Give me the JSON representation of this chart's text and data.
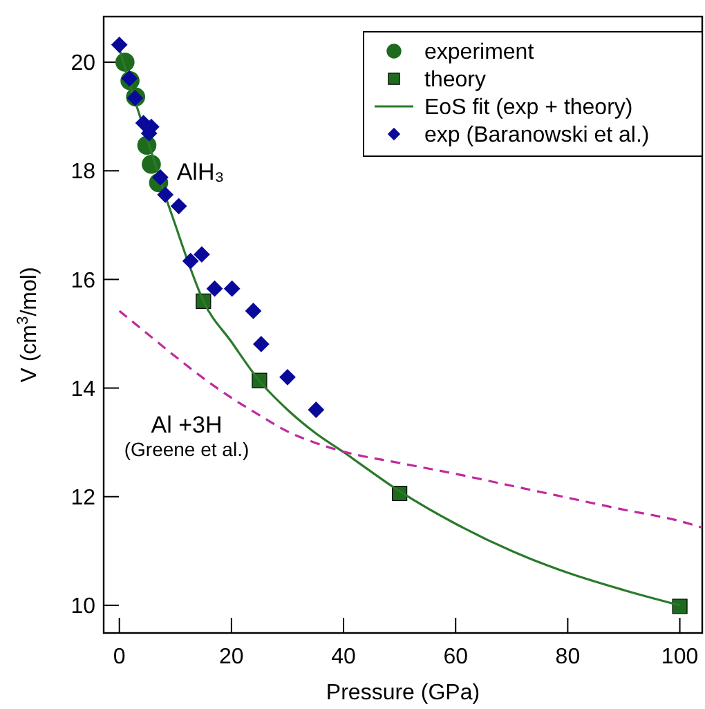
{
  "chart_data": {
    "type": "scatter",
    "xlabel": "Pressure (GPa)",
    "ylabel": "V (cm$^{3}$/mol)",
    "xlim": [
      -2.8,
      104
    ],
    "ylim": [
      9.49,
      20.84
    ],
    "xticks": [
      0,
      20,
      40,
      60,
      80,
      100
    ],
    "yticks": [
      10,
      12,
      14,
      16,
      18,
      20
    ],
    "grid": false,
    "legend": "top right",
    "series": [
      {
        "name": "experiment",
        "marker": "circle",
        "color": "#1e6b1e",
        "x": [
          1.0,
          1.9,
          2.9,
          4.9,
          5.7,
          7.0
        ],
        "values": [
          20.0,
          19.66,
          19.36,
          18.47,
          18.12,
          17.78
        ]
      },
      {
        "name": "theory",
        "marker": "square",
        "color": "#1e6b1e",
        "x": [
          15,
          25,
          50,
          100
        ],
        "values": [
          15.6,
          14.14,
          12.06,
          9.98
        ]
      },
      {
        "name": "EoS fit (exp + theory)",
        "type": "line",
        "marker": "none",
        "line_style": "solid",
        "color": "#2a7a2a",
        "x": [
          0,
          2,
          4,
          6,
          8,
          10,
          12,
          15,
          20,
          25,
          30,
          35,
          40,
          50,
          60,
          70,
          80,
          90,
          100
        ],
        "values": [
          20.25,
          19.55,
          18.9,
          18.25,
          17.6,
          17.0,
          16.4,
          15.6,
          14.85,
          14.13,
          13.6,
          13.17,
          12.82,
          12.1,
          11.5,
          11.0,
          10.6,
          10.28,
          10.0
        ]
      },
      {
        "name": "exp (Baranowski et al.)",
        "marker": "diamond",
        "color": "#0a0a9a",
        "x": [
          0,
          1.8,
          2.8,
          4.3,
          5.7,
          5.3,
          7.3,
          8.2,
          10.6,
          12.7,
          14.7,
          17.0,
          20.1,
          23.9,
          25.3,
          30.0,
          35.1
        ],
        "values": [
          20.32,
          19.7,
          19.34,
          18.88,
          18.81,
          18.69,
          17.88,
          17.56,
          17.35,
          16.34,
          16.46,
          15.83,
          15.83,
          15.42,
          14.81,
          14.2,
          13.6
        ]
      },
      {
        "type": "line",
        "marker": "none",
        "line_style": "dashed",
        "color": "#c02a9e",
        "x": [
          0,
          5,
          10,
          15,
          20,
          25,
          30,
          35,
          40,
          50,
          60,
          70,
          80,
          90,
          100,
          104
        ],
        "values": [
          15.42,
          15.0,
          14.58,
          14.18,
          13.82,
          13.5,
          13.2,
          12.99,
          12.83,
          12.62,
          12.42,
          12.2,
          11.98,
          11.76,
          11.55,
          11.43
        ]
      }
    ],
    "annotations": [
      "AlH₃",
      "Al +3H",
      "(Greene et al.)"
    ]
  }
}
